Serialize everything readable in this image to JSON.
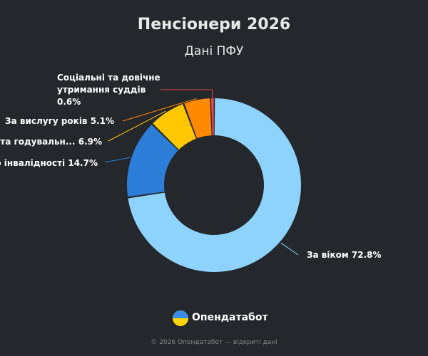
{
  "chart_data": {
    "type": "donut",
    "title": "Пенсіонери 2026",
    "subtitle": "Дані ПФУ",
    "categories": [
      "За віком",
      "о інвалідності",
      "рата годувальн...",
      "За вислугу років",
      "Соціальні та довічне утримання суддів"
    ],
    "values": [
      72.8,
      14.7,
      6.9,
      5.1,
      0.6
    ],
    "value_labels": [
      "72.8%",
      "14.7%",
      "6.9%",
      "5.1%",
      "0.6%"
    ],
    "colors": [
      "#8ed3fd",
      "#2d7ed8",
      "#ffc700",
      "#ff8a00",
      "#e6474d"
    ],
    "brand": "Опендатабот",
    "footer": "© 2026 Опендатабот — відкриті дані"
  }
}
